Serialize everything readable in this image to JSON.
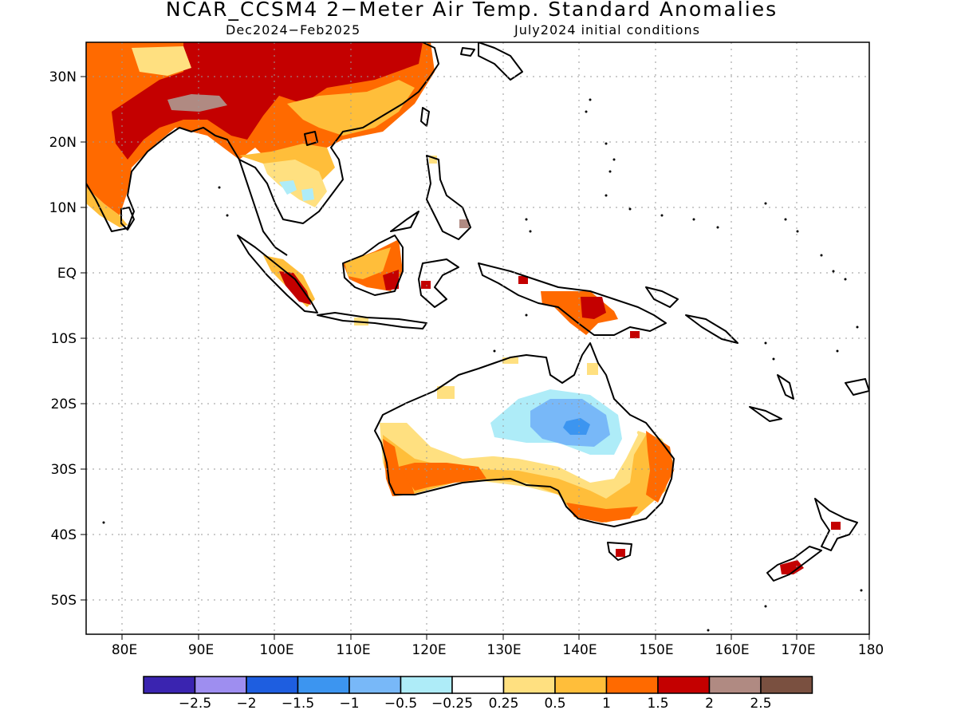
{
  "title": "NCAR_CCSM4 2−Meter Air Temp. Standard Anomalies",
  "subtitle_left": "Dec2024−Feb2025",
  "subtitle_right": "July2024 initial conditions",
  "lat_labels": [
    "30N",
    "20N",
    "10N",
    "EQ",
    "10S",
    "20S",
    "30S",
    "40S",
    "50S"
  ],
  "lon_labels": [
    "80E",
    "90E",
    "100E",
    "110E",
    "120E",
    "130E",
    "140E",
    "150E",
    "160E",
    "170E",
    "180"
  ],
  "colorbar": {
    "colors": [
      "#3a24b0",
      "#9e8ef0",
      "#1e5ee0",
      "#3c95f0",
      "#78b8f8",
      "#aeecf8",
      "#ffffff",
      "#ffe080",
      "#ffbe3a",
      "#ff6a00",
      "#c40000",
      "#b08a82",
      "#7a5040"
    ],
    "labels": [
      "−2.5",
      "−2",
      "−1.5",
      "−1",
      "−0.5",
      "−0.25",
      "0.25",
      "0.5",
      "1",
      "1.5",
      "2",
      "2.5"
    ]
  }
}
